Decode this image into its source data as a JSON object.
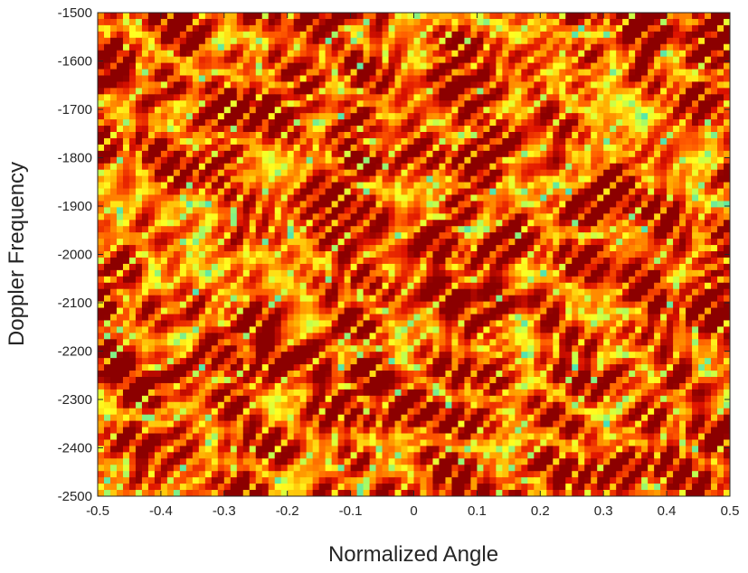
{
  "chart_data": {
    "type": "heatmap",
    "title": "",
    "xlabel": "Normalized Angle",
    "ylabel": "Doppler Frequency",
    "xlim": [
      -0.5,
      0.5
    ],
    "ylim": [
      -2500,
      -1500
    ],
    "y_direction": "reversed",
    "grid": false,
    "colormap": "jet-upper (cyan → yellow → orange → red → dark red)",
    "colors": {
      "low": "#40e0c0",
      "mid_low": "#ffff20",
      "mid": "#ff9000",
      "high": "#e01000",
      "max": "#8a0000"
    },
    "pattern": "speckled clutter spectrum; intensity mostly orange/red with thin yellow-cyan ridges, no clear ridge structure",
    "x_ticks": [
      "-0.5",
      "-0.4",
      "-0.3",
      "-0.2",
      "-0.1",
      "0",
      "0.1",
      "0.2",
      "0.3",
      "0.4",
      "0.5"
    ],
    "x_tick_values": [
      -0.5,
      -0.4,
      -0.3,
      -0.2,
      -0.1,
      0,
      0.1,
      0.2,
      0.3,
      0.4,
      0.5
    ],
    "y_ticks": [
      "-1500",
      "-1600",
      "-1700",
      "-1800",
      "-1900",
      "-2000",
      "-2100",
      "-2200",
      "-2300",
      "-2400",
      "-2500"
    ],
    "y_tick_values": [
      -1500,
      -1600,
      -1700,
      -1800,
      -1900,
      -2000,
      -2100,
      -2200,
      -2300,
      -2400,
      -2500
    ]
  }
}
